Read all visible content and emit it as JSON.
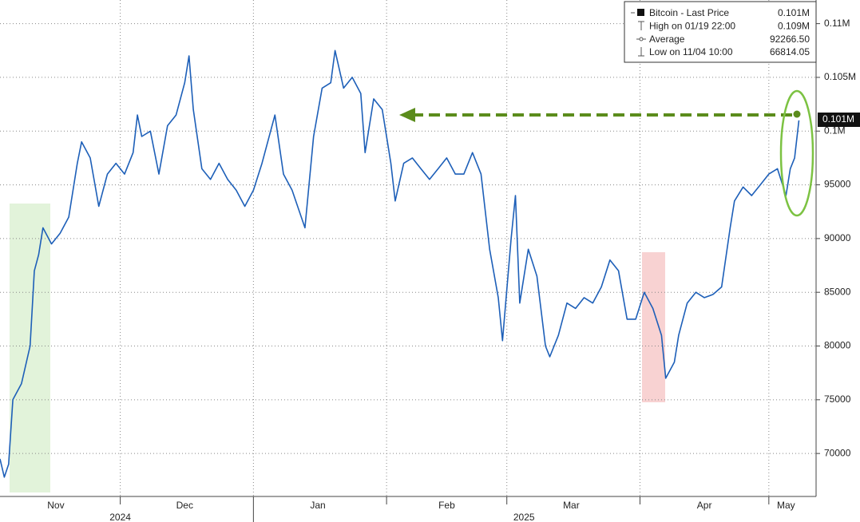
{
  "chart_data": {
    "type": "line",
    "series": [
      {
        "name": "Bitcoin - Last Price",
        "color": "#1d5fb8",
        "x": [
          "2024-11-03",
          "2024-11-04",
          "2024-11-05",
          "2024-11-06",
          "2024-11-08",
          "2024-11-10",
          "2024-11-11",
          "2024-11-12",
          "2024-11-13",
          "2024-11-15",
          "2024-11-17",
          "2024-11-19",
          "2024-11-21",
          "2024-11-22",
          "2024-11-24",
          "2024-11-26",
          "2024-11-28",
          "2024-11-30",
          "2024-12-02",
          "2024-12-04",
          "2024-12-05",
          "2024-12-06",
          "2024-12-08",
          "2024-12-10",
          "2024-12-12",
          "2024-12-14",
          "2024-12-16",
          "2024-12-17",
          "2024-12-18",
          "2024-12-20",
          "2024-12-22",
          "2024-12-24",
          "2024-12-26",
          "2024-12-28",
          "2024-12-30",
          "2025-01-01",
          "2025-01-03",
          "2025-01-06",
          "2025-01-08",
          "2025-01-10",
          "2025-01-13",
          "2025-01-15",
          "2025-01-17",
          "2025-01-19",
          "2025-01-20",
          "2025-01-22",
          "2025-01-24",
          "2025-01-26",
          "2025-01-27",
          "2025-01-29",
          "2025-01-31",
          "2025-02-02",
          "2025-02-03",
          "2025-02-05",
          "2025-02-07",
          "2025-02-09",
          "2025-02-11",
          "2025-02-13",
          "2025-02-15",
          "2025-02-17",
          "2025-02-19",
          "2025-02-21",
          "2025-02-23",
          "2025-02-25",
          "2025-02-27",
          "2025-02-28",
          "2025-03-02",
          "2025-03-03",
          "2025-03-04",
          "2025-03-06",
          "2025-03-08",
          "2025-03-10",
          "2025-03-11",
          "2025-03-13",
          "2025-03-15",
          "2025-03-17",
          "2025-03-19",
          "2025-03-21",
          "2025-03-23",
          "2025-03-25",
          "2025-03-27",
          "2025-03-29",
          "2025-03-31",
          "2025-04-02",
          "2025-04-04",
          "2025-04-06",
          "2025-04-07",
          "2025-04-09",
          "2025-04-10",
          "2025-04-12",
          "2025-04-14",
          "2025-04-16",
          "2025-04-18",
          "2025-04-20",
          "2025-04-22",
          "2025-04-23",
          "2025-04-25",
          "2025-04-27",
          "2025-04-29",
          "2025-05-01",
          "2025-05-03",
          "2025-05-05",
          "2025-05-06",
          "2025-05-07",
          "2025-05-08"
        ],
        "values": [
          69500,
          67800,
          69000,
          75000,
          76500,
          80000,
          87000,
          88500,
          91000,
          89500,
          90500,
          92000,
          97000,
          99000,
          97500,
          93000,
          96000,
          97000,
          96000,
          98000,
          101500,
          99500,
          100000,
          96000,
          100500,
          101500,
          104500,
          107000,
          102000,
          96500,
          95500,
          97000,
          95500,
          94500,
          93000,
          94500,
          97000,
          101500,
          96000,
          94500,
          91000,
          99500,
          104000,
          104500,
          107500,
          104000,
          105000,
          103500,
          98000,
          103000,
          102000,
          97000,
          93500,
          97000,
          97500,
          96500,
          95500,
          96500,
          97500,
          96000,
          96000,
          98000,
          96000,
          89000,
          84500,
          80500,
          90000,
          94000,
          84000,
          89000,
          86500,
          80000,
          79000,
          81000,
          84000,
          83500,
          84500,
          84000,
          85500,
          88000,
          87000,
          82500,
          82500,
          85000,
          83500,
          81000,
          77000,
          78500,
          81000,
          84000,
          85000,
          84500,
          84800,
          85500,
          91000,
          93500,
          94800,
          94000,
          95000,
          96000,
          96500,
          94000,
          96500,
          97500,
          101000
        ]
      }
    ],
    "last_price_label": "0.101M",
    "legend": [
      {
        "label": "Bitcoin - Last Price",
        "value": "0.101M"
      },
      {
        "label": "High on 01/19 22:00",
        "value": "0.109M"
      },
      {
        "label": "Average",
        "value": "92266.50"
      },
      {
        "label": "Low on 11/04 10:00",
        "value": "66814.05"
      }
    ],
    "xlim": [
      "2024-11-03",
      "2025-05-12"
    ],
    "xticks": [
      {
        "value": "2024-11-16",
        "label": "Nov"
      },
      {
        "value": "2024-12-16",
        "label": "Dec"
      },
      {
        "value": "2025-01-16",
        "label": "Jan"
      },
      {
        "value": "2025-02-15",
        "label": "Feb"
      },
      {
        "value": "2025-03-16",
        "label": "Mar"
      },
      {
        "value": "2025-04-16",
        "label": "Apr"
      },
      {
        "value": "2025-05-05",
        "label": "May"
      }
    ],
    "xgrid": [
      "2024-12-01",
      "2025-01-01",
      "2025-02-01",
      "2025-03-01",
      "2025-04-01",
      "2025-05-01"
    ],
    "year_labels": [
      {
        "value": "2024-12-01",
        "label": "2024"
      },
      {
        "value": "2025-03-05",
        "label": "2025"
      }
    ],
    "ylim": [
      66000,
      112200
    ],
    "yticks": [
      70000,
      75000,
      80000,
      85000,
      90000,
      95000,
      {
        "value": 100000,
        "label": "0.1M"
      },
      {
        "value": 105000,
        "label": "0.105M"
      },
      {
        "value": 110000,
        "label": "0.11M"
      }
    ],
    "grid": true
  }
}
